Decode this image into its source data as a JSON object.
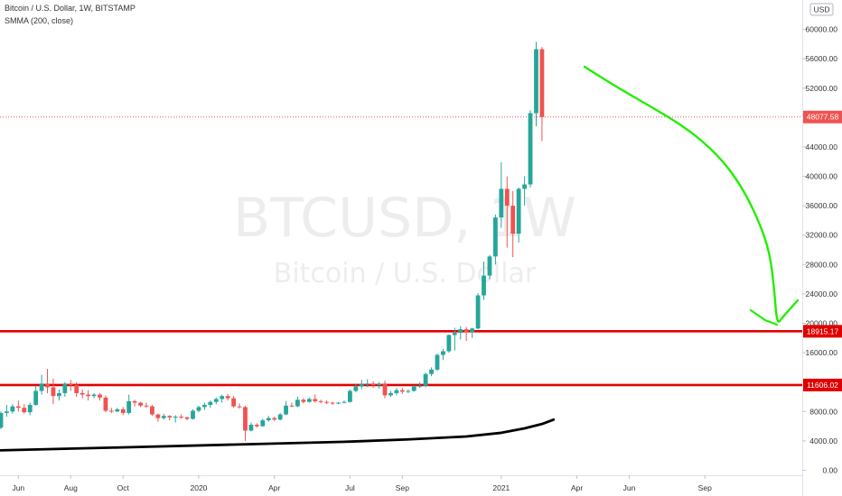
{
  "header": {
    "symbol_line": "Bitcoin / U.S. Dollar, 1W, BITSTAMP",
    "indicator_line": "SMMA (200, close)"
  },
  "watermark": {
    "ticker": "BTCUSD, 1W",
    "name": "Bitcoin / U.S. Dollar"
  },
  "currency_badge": "USD",
  "price_tags": [
    {
      "label": "48077.58",
      "value": 48077.58,
      "color": "#ef5350"
    },
    {
      "label": "18915.17",
      "value": 18915.17,
      "color": "#e00000"
    },
    {
      "label": "11606.02",
      "value": 11606.02,
      "color": "#e00000"
    }
  ],
  "colors": {
    "up": "#26a69a",
    "down": "#ef5350",
    "level_line": "#e00000",
    "arrow": "#22ee00",
    "smma": "#000000"
  },
  "chart_data": {
    "type": "candlestick",
    "title": "Bitcoin / U.S. Dollar, 1W, BITSTAMP",
    "ylim": [
      -3500,
      64000
    ],
    "y_ticks": [
      {
        "v": 60000,
        "label": "60000.00"
      },
      {
        "v": 56000,
        "label": "56000.00"
      },
      {
        "v": 52000,
        "label": "52000.00"
      },
      {
        "v": 44000,
        "label": "44000.00"
      },
      {
        "v": 40000,
        "label": "40000.00"
      },
      {
        "v": 36000,
        "label": "36000.00"
      },
      {
        "v": 32000,
        "label": "32000.00"
      },
      {
        "v": 28000,
        "label": "28000.00"
      },
      {
        "v": 24000,
        "label": "24000.00"
      },
      {
        "v": 20000,
        "label": "20000.00"
      },
      {
        "v": 16000,
        "label": "16000.00"
      },
      {
        "v": 8000,
        "label": "8000.00"
      },
      {
        "v": 4000,
        "label": "4000.00"
      },
      {
        "v": 0,
        "label": "0.00"
      }
    ],
    "x_labels": [
      {
        "i": 3,
        "label": "Jun"
      },
      {
        "i": 12,
        "label": "Aug"
      },
      {
        "i": 21,
        "label": "Oct"
      },
      {
        "i": 34,
        "label": "2020"
      },
      {
        "i": 47,
        "label": "Apr"
      },
      {
        "i": 60,
        "label": "Jul"
      },
      {
        "i": 69,
        "label": "Sep"
      },
      {
        "i": 86,
        "label": "2021"
      },
      {
        "i": 99,
        "label": "Apr"
      },
      {
        "i": 108,
        "label": "Jun"
      },
      {
        "i": 121,
        "label": "Sep"
      }
    ],
    "candles": [
      {
        "o": 5800,
        "h": 8000,
        "l": 5600,
        "c": 7800
      },
      {
        "o": 7800,
        "h": 8900,
        "l": 7300,
        "c": 8000
      },
      {
        "o": 8000,
        "h": 9000,
        "l": 7700,
        "c": 8700
      },
      {
        "o": 8700,
        "h": 9500,
        "l": 8000,
        "c": 8500
      },
      {
        "o": 8500,
        "h": 9000,
        "l": 7700,
        "c": 7900
      },
      {
        "o": 7900,
        "h": 9200,
        "l": 7500,
        "c": 8900
      },
      {
        "o": 8900,
        "h": 11500,
        "l": 8800,
        "c": 10800
      },
      {
        "o": 10800,
        "h": 13000,
        "l": 10300,
        "c": 11800
      },
      {
        "o": 11800,
        "h": 13800,
        "l": 10500,
        "c": 11300
      },
      {
        "o": 11300,
        "h": 12500,
        "l": 9000,
        "c": 10100
      },
      {
        "o": 10100,
        "h": 11000,
        "l": 9500,
        "c": 10500
      },
      {
        "o": 10500,
        "h": 12000,
        "l": 10000,
        "c": 11800
      },
      {
        "o": 11800,
        "h": 12300,
        "l": 10800,
        "c": 11600
      },
      {
        "o": 11600,
        "h": 12000,
        "l": 10000,
        "c": 10500
      },
      {
        "o": 10500,
        "h": 11000,
        "l": 9800,
        "c": 10300
      },
      {
        "o": 10300,
        "h": 10900,
        "l": 9500,
        "c": 10100
      },
      {
        "o": 10100,
        "h": 10500,
        "l": 9800,
        "c": 10300
      },
      {
        "o": 10300,
        "h": 10500,
        "l": 9500,
        "c": 9900
      },
      {
        "o": 9900,
        "h": 10200,
        "l": 7900,
        "c": 8100
      },
      {
        "o": 8100,
        "h": 8500,
        "l": 7800,
        "c": 8000
      },
      {
        "o": 8000,
        "h": 8500,
        "l": 7900,
        "c": 8300
      },
      {
        "o": 8300,
        "h": 8600,
        "l": 7500,
        "c": 7800
      },
      {
        "o": 7800,
        "h": 10300,
        "l": 7600,
        "c": 9400
      },
      {
        "o": 9400,
        "h": 9600,
        "l": 8700,
        "c": 9200
      },
      {
        "o": 9200,
        "h": 9300,
        "l": 8600,
        "c": 8800
      },
      {
        "o": 8800,
        "h": 9200,
        "l": 8500,
        "c": 8700
      },
      {
        "o": 8700,
        "h": 8900,
        "l": 7400,
        "c": 7600
      },
      {
        "o": 7600,
        "h": 7700,
        "l": 6600,
        "c": 7100
      },
      {
        "o": 7100,
        "h": 7700,
        "l": 6900,
        "c": 7400
      },
      {
        "o": 7400,
        "h": 7500,
        "l": 6800,
        "c": 7200
      },
      {
        "o": 7200,
        "h": 7500,
        "l": 6500,
        "c": 7300
      },
      {
        "o": 7300,
        "h": 7600,
        "l": 7000,
        "c": 7200
      },
      {
        "o": 7200,
        "h": 7300,
        "l": 6800,
        "c": 7000
      },
      {
        "o": 7000,
        "h": 8300,
        "l": 6900,
        "c": 8100
      },
      {
        "o": 8100,
        "h": 8800,
        "l": 7900,
        "c": 8600
      },
      {
        "o": 8600,
        "h": 9200,
        "l": 8200,
        "c": 8900
      },
      {
        "o": 8900,
        "h": 9500,
        "l": 8500,
        "c": 9300
      },
      {
        "o": 9300,
        "h": 9900,
        "l": 9000,
        "c": 9700
      },
      {
        "o": 9700,
        "h": 10300,
        "l": 9200,
        "c": 10100
      },
      {
        "o": 10100,
        "h": 10400,
        "l": 9500,
        "c": 9800
      },
      {
        "o": 9800,
        "h": 10100,
        "l": 8500,
        "c": 8700
      },
      {
        "o": 8700,
        "h": 9100,
        "l": 8400,
        "c": 8600
      },
      {
        "o": 8600,
        "h": 8800,
        "l": 4000,
        "c": 5400
      },
      {
        "o": 5400,
        "h": 6500,
        "l": 5300,
        "c": 6200
      },
      {
        "o": 6200,
        "h": 6400,
        "l": 5800,
        "c": 6000
      },
      {
        "o": 6000,
        "h": 7000,
        "l": 5900,
        "c": 6800
      },
      {
        "o": 6800,
        "h": 7400,
        "l": 6600,
        "c": 7100
      },
      {
        "o": 7100,
        "h": 7300,
        "l": 6700,
        "c": 6900
      },
      {
        "o": 6900,
        "h": 7800,
        "l": 6800,
        "c": 7600
      },
      {
        "o": 7600,
        "h": 9400,
        "l": 7500,
        "c": 8800
      },
      {
        "o": 8800,
        "h": 9200,
        "l": 8600,
        "c": 8700
      },
      {
        "o": 8700,
        "h": 10000,
        "l": 8600,
        "c": 9600
      },
      {
        "o": 9600,
        "h": 9800,
        "l": 9100,
        "c": 9300
      },
      {
        "o": 9300,
        "h": 9900,
        "l": 9200,
        "c": 9700
      },
      {
        "o": 9700,
        "h": 10300,
        "l": 9200,
        "c": 9400
      },
      {
        "o": 9400,
        "h": 9600,
        "l": 9100,
        "c": 9300
      },
      {
        "o": 9300,
        "h": 9500,
        "l": 9000,
        "c": 9200
      },
      {
        "o": 9200,
        "h": 9300,
        "l": 8900,
        "c": 9100
      },
      {
        "o": 9100,
        "h": 9300,
        "l": 9000,
        "c": 9200
      },
      {
        "o": 9200,
        "h": 9500,
        "l": 9100,
        "c": 9300
      },
      {
        "o": 9300,
        "h": 11000,
        "l": 9200,
        "c": 10800
      },
      {
        "o": 10800,
        "h": 11800,
        "l": 10600,
        "c": 11400
      },
      {
        "o": 11400,
        "h": 12300,
        "l": 11000,
        "c": 11700
      },
      {
        "o": 11700,
        "h": 12400,
        "l": 11300,
        "c": 11800
      },
      {
        "o": 11800,
        "h": 12100,
        "l": 11200,
        "c": 11600
      },
      {
        "o": 11600,
        "h": 12000,
        "l": 11100,
        "c": 11800
      },
      {
        "o": 11800,
        "h": 12200,
        "l": 9800,
        "c": 10200
      },
      {
        "o": 10200,
        "h": 10800,
        "l": 10000,
        "c": 10500
      },
      {
        "o": 10500,
        "h": 11200,
        "l": 10200,
        "c": 10900
      },
      {
        "o": 10900,
        "h": 11200,
        "l": 10400,
        "c": 10700
      },
      {
        "o": 10700,
        "h": 11000,
        "l": 10500,
        "c": 10800
      },
      {
        "o": 10800,
        "h": 11600,
        "l": 10700,
        "c": 11400
      },
      {
        "o": 11400,
        "h": 12000,
        "l": 11200,
        "c": 11500
      },
      {
        "o": 11500,
        "h": 13300,
        "l": 11300,
        "c": 13100
      },
      {
        "o": 13100,
        "h": 14000,
        "l": 12800,
        "c": 13700
      },
      {
        "o": 13700,
        "h": 15900,
        "l": 13500,
        "c": 15700
      },
      {
        "o": 15700,
        "h": 16500,
        "l": 15000,
        "c": 16200
      },
      {
        "o": 16200,
        "h": 18500,
        "l": 16000,
        "c": 18400
      },
      {
        "o": 18400,
        "h": 19400,
        "l": 16300,
        "c": 18700
      },
      {
        "o": 18700,
        "h": 19600,
        "l": 17800,
        "c": 19200
      },
      {
        "o": 19200,
        "h": 19500,
        "l": 17600,
        "c": 18800
      },
      {
        "o": 18800,
        "h": 19400,
        "l": 18000,
        "c": 19300
      },
      {
        "o": 19300,
        "h": 24100,
        "l": 19200,
        "c": 23800
      },
      {
        "o": 23800,
        "h": 28400,
        "l": 23200,
        "c": 26500
      },
      {
        "o": 26500,
        "h": 29300,
        "l": 26000,
        "c": 29100
      },
      {
        "o": 29100,
        "h": 34800,
        "l": 28000,
        "c": 34400
      },
      {
        "o": 34400,
        "h": 41900,
        "l": 33000,
        "c": 38300
      },
      {
        "o": 38300,
        "h": 40000,
        "l": 30300,
        "c": 36000
      },
      {
        "o": 36000,
        "h": 38000,
        "l": 29000,
        "c": 32200
      },
      {
        "o": 32200,
        "h": 38500,
        "l": 31000,
        "c": 38300
      },
      {
        "o": 38300,
        "h": 40000,
        "l": 36000,
        "c": 38900
      },
      {
        "o": 38900,
        "h": 49000,
        "l": 38500,
        "c": 48600
      },
      {
        "o": 48600,
        "h": 58300,
        "l": 46800,
        "c": 57300
      },
      {
        "o": 57300,
        "h": 57600,
        "l": 44800,
        "c": 48077.58
      }
    ],
    "smma": [
      {
        "i": -1,
        "v": 2700
      },
      {
        "i": 20,
        "v": 3100
      },
      {
        "i": 40,
        "v": 3500
      },
      {
        "i": 60,
        "v": 3900
      },
      {
        "i": 70,
        "v": 4200
      },
      {
        "i": 80,
        "v": 4600
      },
      {
        "i": 86,
        "v": 5100
      },
      {
        "i": 90,
        "v": 5700
      },
      {
        "i": 93,
        "v": 6300
      },
      {
        "i": 95,
        "v": 6900
      }
    ],
    "levels": [
      {
        "value": 18915.17,
        "label": "18915.17"
      },
      {
        "value": 11606.02,
        "label": "11606.02"
      }
    ],
    "last_price": 48077.58,
    "annotation_arrow": [
      [
        647,
        74
      ],
      [
        680,
        95
      ],
      [
        720,
        118
      ],
      [
        760,
        142
      ],
      [
        795,
        172
      ],
      [
        820,
        205
      ],
      [
        840,
        245
      ],
      [
        852,
        280
      ],
      [
        857,
        320
      ],
      [
        860,
        360
      ],
      [
        866,
        352
      ],
      [
        883,
        333
      ]
    ],
    "annotation_arrow_head": [
      [
        831,
        344
      ],
      [
        847,
        355
      ],
      [
        860,
        360
      ]
    ],
    "grid": false
  }
}
